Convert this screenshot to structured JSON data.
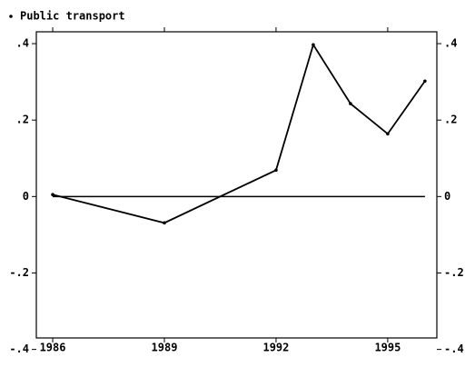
{
  "chart_data": {
    "type": "line",
    "x": [
      1986,
      1989,
      1992,
      1993,
      1994,
      1995,
      1996
    ],
    "series": [
      {
        "name": "Public transport",
        "color": "#000000",
        "values": [
          0.005,
          -0.069,
          0.069,
          0.397,
          0.243,
          0.164,
          0.302
        ]
      }
    ],
    "xlim": [
      1985.56,
      1996.32
    ],
    "xticks": [
      1986,
      1989,
      1992,
      1995
    ],
    "ylim": [
      -0.37,
      0.431
    ],
    "yticks": [
      {
        "value": -0.4,
        "label": "-.4"
      },
      {
        "value": -0.2,
        "label": "-.2"
      },
      0,
      {
        "value": 0.2,
        "label": ".2"
      },
      {
        "value": 0.4,
        "label": ".4"
      }
    ],
    "yline": 0,
    "right_axis": true,
    "legend": "top-left"
  }
}
